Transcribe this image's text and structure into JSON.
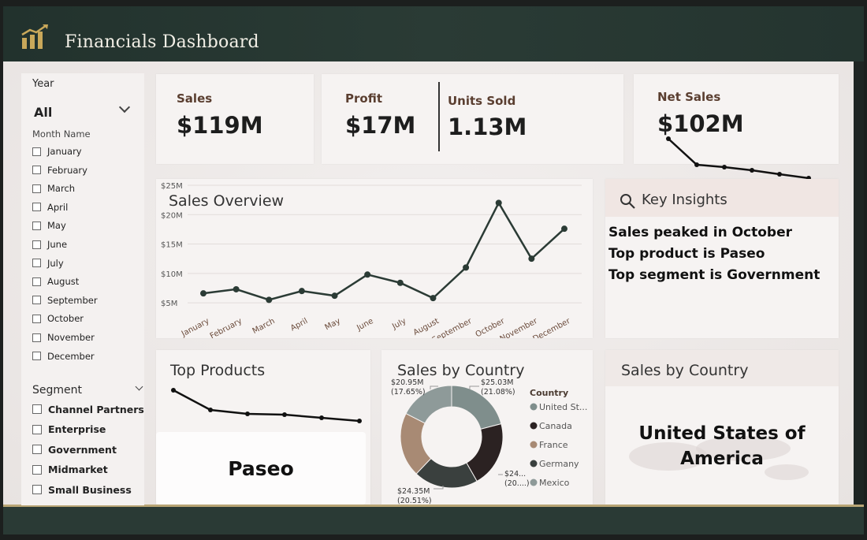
{
  "header": {
    "title": "Financials Dashboard",
    "logo_icon": "bar-chart-icon",
    "accent": "#b9a575"
  },
  "filters": {
    "year_label": "Year",
    "year_value": "All",
    "month_label": "Month Name",
    "months": [
      "January",
      "February",
      "March",
      "April",
      "May",
      "June",
      "July",
      "August",
      "September",
      "October",
      "November",
      "December"
    ],
    "segment_label": "Segment",
    "segments": [
      "Channel Partners",
      "Enterprise",
      "Government",
      "Midmarket",
      "Small Business"
    ]
  },
  "kpis": {
    "sales": {
      "label": "Sales",
      "value": "$119M"
    },
    "profit": {
      "label": "Profit",
      "value": "$17M"
    },
    "units": {
      "label": "Units Sold",
      "value": "1.13M"
    },
    "net_sales": {
      "label": "Net Sales",
      "value": "$102M"
    }
  },
  "sales_overview": {
    "title": "Sales Overview"
  },
  "insights": {
    "title": "Key Insights",
    "icon": "search-icon",
    "lines": [
      "Sales peaked in October",
      "Top product is Paseo",
      "Top segment is Government"
    ]
  },
  "top_products": {
    "title": "Top Products",
    "value": "Paseo"
  },
  "country_donut": {
    "title": "Sales by Country",
    "legend_title": "Country"
  },
  "country_card": {
    "title": "Sales by Country",
    "value": "United States of America"
  },
  "chart_data": [
    {
      "type": "line",
      "title": "Sales Overview",
      "categories": [
        "January",
        "February",
        "March",
        "April",
        "May",
        "June",
        "July",
        "August",
        "September",
        "October",
        "November",
        "December"
      ],
      "values": [
        6.6,
        7.3,
        5.5,
        7.0,
        6.2,
        9.8,
        8.4,
        5.8,
        11.0,
        22.0,
        12.5,
        17.6
      ],
      "y_ticks": [
        "$5M",
        "$10M",
        "$15M",
        "$20M",
        "$25M"
      ],
      "ylim": [
        3,
        25
      ],
      "line_color": "#2b3b35"
    },
    {
      "type": "pie",
      "title": "Sales by Country",
      "labels": [
        "United St...",
        "Canada",
        "France",
        "Germany",
        "Mexico"
      ],
      "values": [
        25.03,
        24.89,
        24.35,
        24.32,
        20.95
      ],
      "percents": [
        21.08,
        20.96,
        20.51,
        20.48,
        17.65
      ],
      "colors": [
        "#7f8e8c",
        "#2b2222",
        "#a88a74",
        "#3a403e",
        "#8e9a99"
      ],
      "data_labels": [
        {
          "value": "$25.03M",
          "pct": "(21.08%)"
        },
        {
          "value": "$24...",
          "pct": "(20....)"
        },
        {
          "value": "$24.35M",
          "pct": "(20.51%)"
        },
        {
          "value": "$20.95M",
          "pct": "(17.65%)"
        }
      ]
    }
  ]
}
